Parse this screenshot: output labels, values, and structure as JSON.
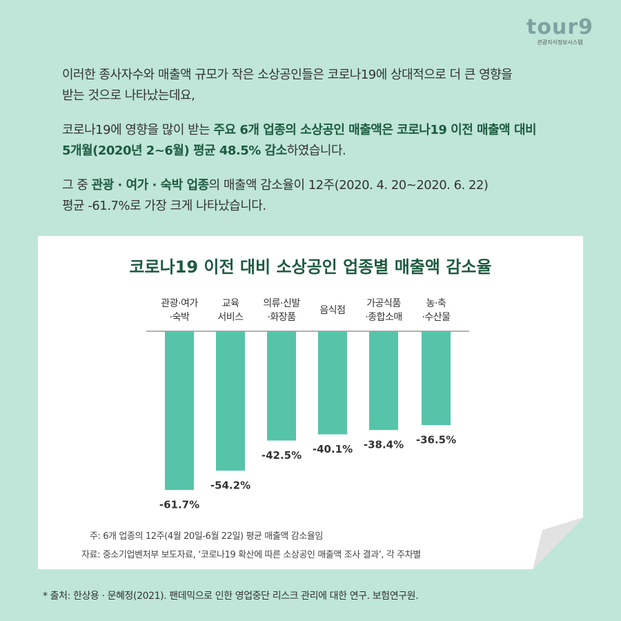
{
  "logo": {
    "name": "tour9",
    "subtitle": "관광지식정보시스템"
  },
  "intro": {
    "lines": [
      [
        {
          "text": "이러한 종사자수와 매출액 규모가 작은 소상공인들은 코로나19에 상대적으로 더 큰 영향을"
        }
      ],
      [
        {
          "text": "받는 것으로 나타났는데요,"
        }
      ],
      [
        {
          "text": "코로나19에 영향을 많이 받는 "
        },
        {
          "text": "주요 6개 업종의 소상공인 매출액은 코로나19 이전 매출액 대비",
          "bold": true
        }
      ],
      [
        {
          "text": "5개월(2020년 2~6월) 평균 48.5% 감소",
          "bold": true
        },
        {
          "text": "하였습니다."
        }
      ],
      [
        {
          "text": "그 중 "
        },
        {
          "text": "관광 · 여가 · 숙박 업종",
          "bold": true
        },
        {
          "text": "의 매출액 감소율이 12주(2020. 4. 20~2020. 6. 22)"
        }
      ],
      [
        {
          "text": "평균 -61.7%로 가장 크게 나타났습니다."
        }
      ]
    ]
  },
  "chart_data": {
    "type": "bar",
    "title": "코로나19 이전 대비 소상공인 업종별 매출액 감소율",
    "categories": [
      "관광·여가\n·숙박",
      "교육\n서비스",
      "의류·신발\n·화장품",
      "음식점",
      "가공식품\n·종합소매",
      "농·축\n·수산물"
    ],
    "values": [
      -61.7,
      -54.2,
      -42.5,
      -40.1,
      -38.4,
      -36.5
    ],
    "value_labels": [
      "-61.7%",
      "-54.2%",
      "-42.5%",
      "-40.1%",
      "-38.4%",
      "-36.5%"
    ],
    "color": "#55c4a8",
    "ylim": [
      -70,
      0
    ]
  },
  "notes": [
    "주: 6개 업종의 12주(4월 20일-6월 22일) 평균 매출액 감소율임",
    "자료: 중소기업벤처부 보도자료, ‘코로나19 확산에 따른 소상공인 매출액 조사 결과’, 각 주차별"
  ],
  "footer": "* 출처: 한상용 · 문혜정(2021). 팬데믹으로 인한 영업중단 리스크 관리에 대한 연구. 보험연구원."
}
